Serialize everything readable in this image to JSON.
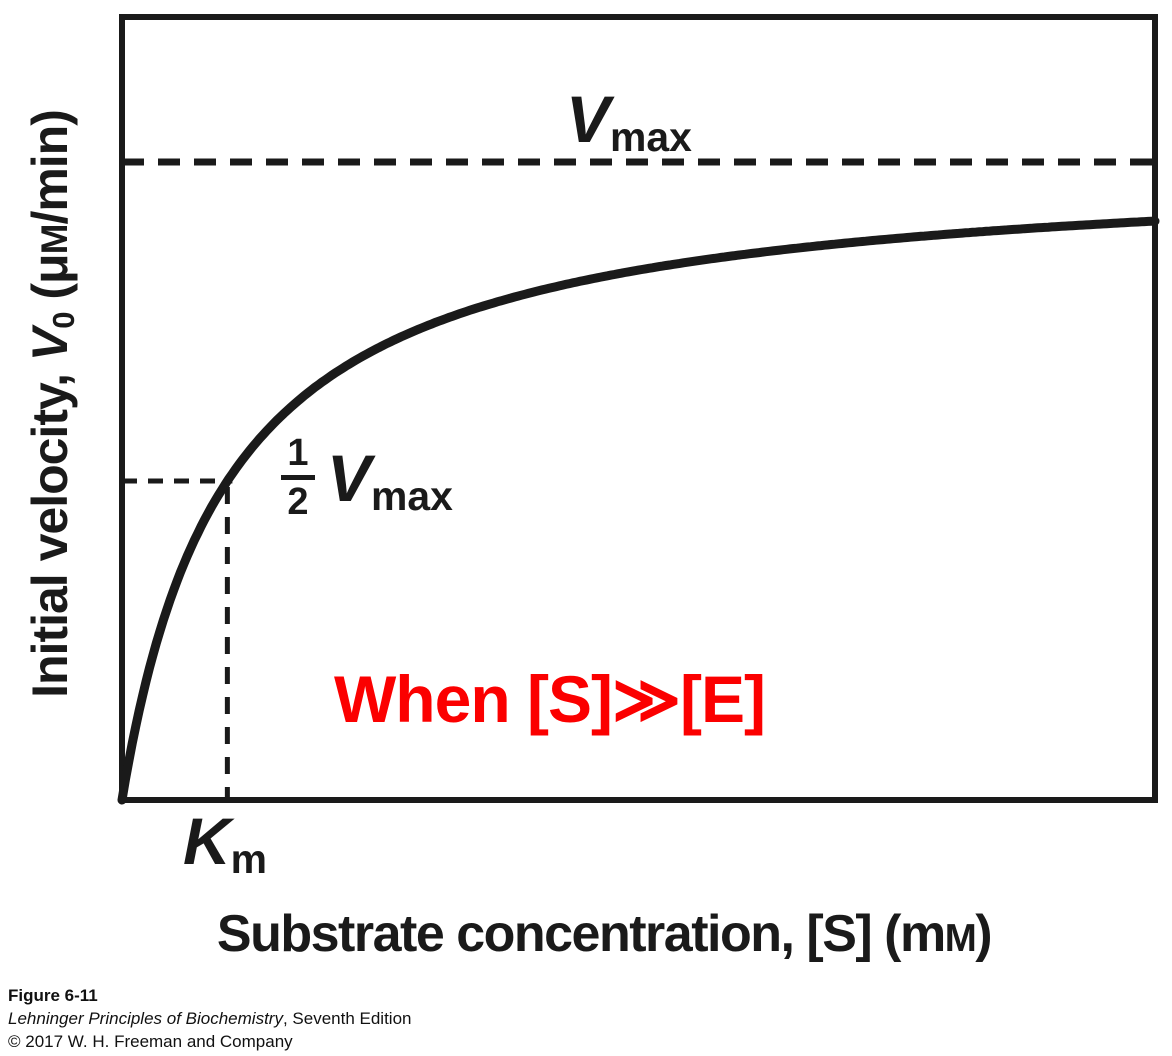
{
  "chart_data": {
    "type": "line",
    "model": "michaelis_menten",
    "equation": "V0 = Vmax*[S]/(Km+[S])",
    "title": "",
    "xlabel": "Substrate concentration, [S] (mM)",
    "ylabel": "Initial velocity, V0 (μM/min)",
    "x_axis_tick_labels": [],
    "y_axis_tick_labels": [],
    "grid": false,
    "x_range_norm": [
      0,
      1
    ],
    "vmax_norm": 1.0,
    "half_vmax_norm": 0.5,
    "km_over_xmax": 0.102,
    "curve_end_fraction_of_vmax": 0.91,
    "reference_lines": [
      {
        "label": "Vmax",
        "axis": "y",
        "value_norm": 1.0,
        "style": "dashed"
      },
      {
        "label": "1/2 Vmax",
        "axis": "y",
        "value_norm": 0.5,
        "style": "dashed",
        "extent": "to_curve"
      },
      {
        "label": "Km",
        "axis": "x",
        "value_norm": 0.102,
        "style": "dashed",
        "extent": "to_half_vmax"
      }
    ],
    "annotations": [
      "Vmax",
      "1/2 Vmax",
      "Km",
      "When [S]≫[E]"
    ]
  },
  "labels": {
    "y_axis": {
      "prefix": "Initial velocity, ",
      "var": "V",
      "var_sub": "0",
      "unit_pre": " (μ",
      "unit_smallcap_m": "M",
      "unit_post": "/min)"
    },
    "x_axis": {
      "prefix": "Substrate concentration, [S] (m",
      "unit_smallcap_m": "M",
      "suffix": ")"
    },
    "vmax": {
      "base": "V",
      "sub": "max"
    },
    "half_vmax": {
      "numerator": "1",
      "denominator": "2",
      "base": "V",
      "sub": "max"
    },
    "km": {
      "base": "K",
      "sub": "m"
    },
    "annotation_when": "When [S]≫[E]"
  },
  "caption": {
    "figure_number": "Figure 6-11",
    "book_title": "Lehninger Principles of Biochemistry",
    "edition_suffix": ", Seventh Edition",
    "copyright": "© 2017 W. H. Freeman and Company"
  },
  "colors": {
    "ink": "#1a1a1a",
    "annotation_red": "#fb0000",
    "background": "#ffffff"
  }
}
